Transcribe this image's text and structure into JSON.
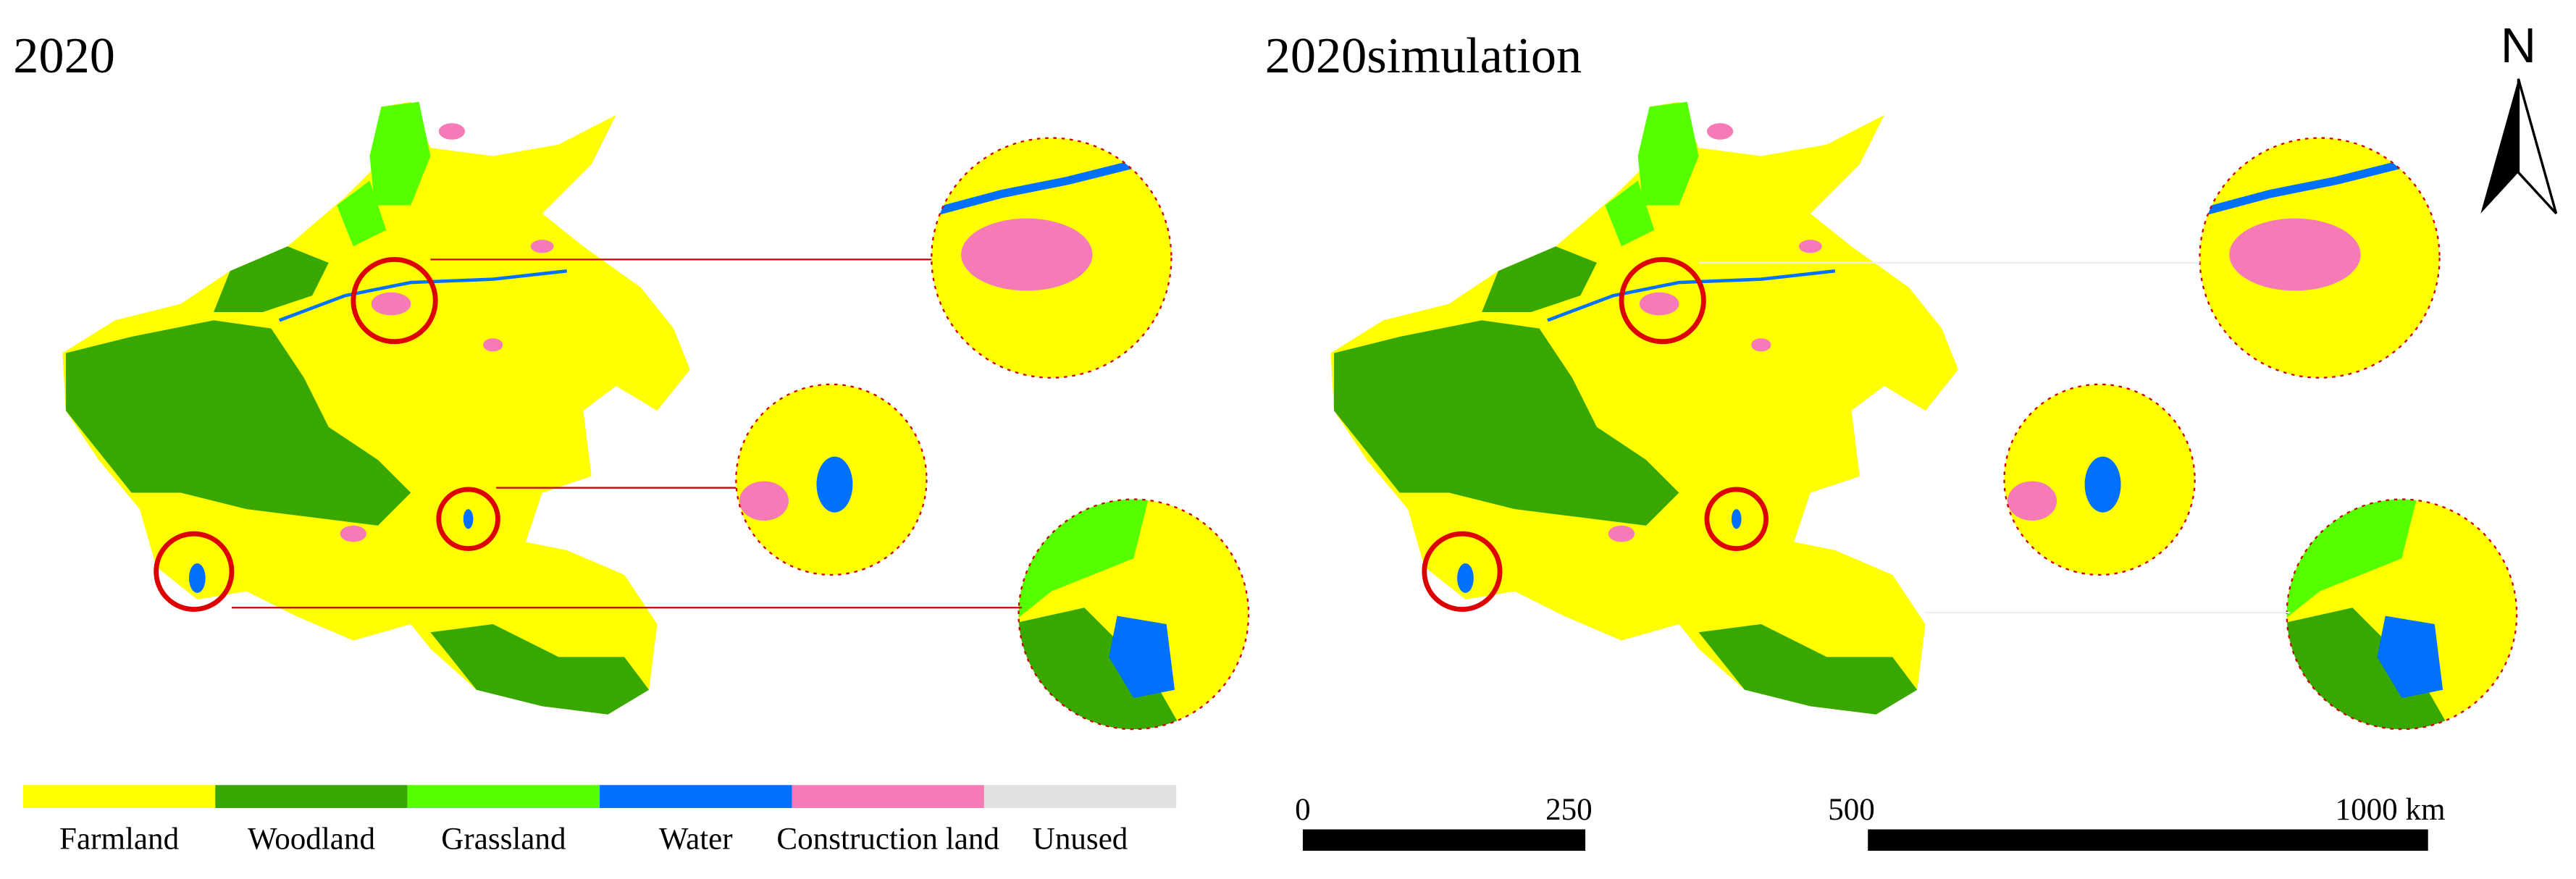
{
  "panels": [
    {
      "title": "2020"
    },
    {
      "title": "2020simulation"
    }
  ],
  "legend": [
    {
      "label": "Farmland",
      "color": "#ffff00"
    },
    {
      "label": "Woodland",
      "color": "#38a800"
    },
    {
      "label": "Grassland",
      "color": "#55ff00"
    },
    {
      "label": "Water",
      "color": "#0070ff"
    },
    {
      "label": "Construction land",
      "color": "#f57ab6"
    },
    {
      "label": "Unused",
      "color": "#e1e1e1"
    }
  ],
  "scale_bar": {
    "labels": [
      "0",
      "250",
      "500",
      "1000 km"
    ]
  },
  "north": "N"
}
